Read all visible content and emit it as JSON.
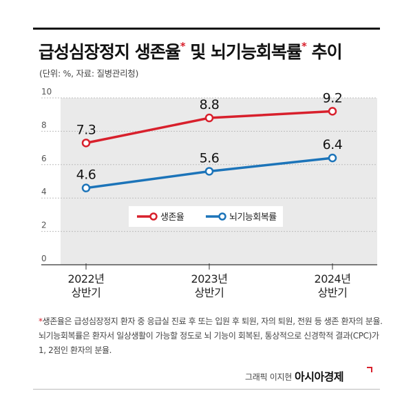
{
  "header": {
    "title_part1": "급성심장정지 생존율",
    "title_part2": " 및 뇌기능회복률",
    "title_part3": " 추이",
    "asterisk": "*",
    "unit": "(단위: %, 자료: 질병관리청)"
  },
  "chart_data": {
    "type": "line",
    "categories": [
      "2022년 상반기",
      "2023년 상반기",
      "2024년 상반기"
    ],
    "category_lines": [
      [
        "2022년",
        "상반기"
      ],
      [
        "2023년",
        "상반기"
      ],
      [
        "2024년",
        "상반기"
      ]
    ],
    "series": [
      {
        "name": "생존율",
        "values": [
          7.3,
          8.8,
          9.2
        ],
        "labels": [
          "7.3",
          "8.8",
          "9.2"
        ],
        "color": "#d8202c"
      },
      {
        "name": "뇌기능회복률",
        "values": [
          4.6,
          5.6,
          6.4
        ],
        "labels": [
          "4.6",
          "5.6",
          "6.4"
        ],
        "color": "#1c74b9"
      }
    ],
    "yticks": [
      "10",
      "8",
      "6",
      "4",
      "2",
      "0"
    ],
    "ylim": [
      0,
      10
    ],
    "grid": true,
    "legend_position": "center",
    "plot_background": "#eaeaea"
  },
  "footnote": {
    "star": "*",
    "text": "생존율은 급성심장정지 환자 중 응급실 진료 후 또는 입원 후 퇴원, 자의 퇴원, 전원 등 생존 환자의 분율. 뇌기능회복률은 환자서 일상생활이 가능할 정도로 뇌 기능이 회복된, 통상적으로 신경학적 결과(CPC)가 1, 2점인 환자의 분율."
  },
  "credit": {
    "text": "그래픽 이지현",
    "brand": "아시아경제"
  }
}
